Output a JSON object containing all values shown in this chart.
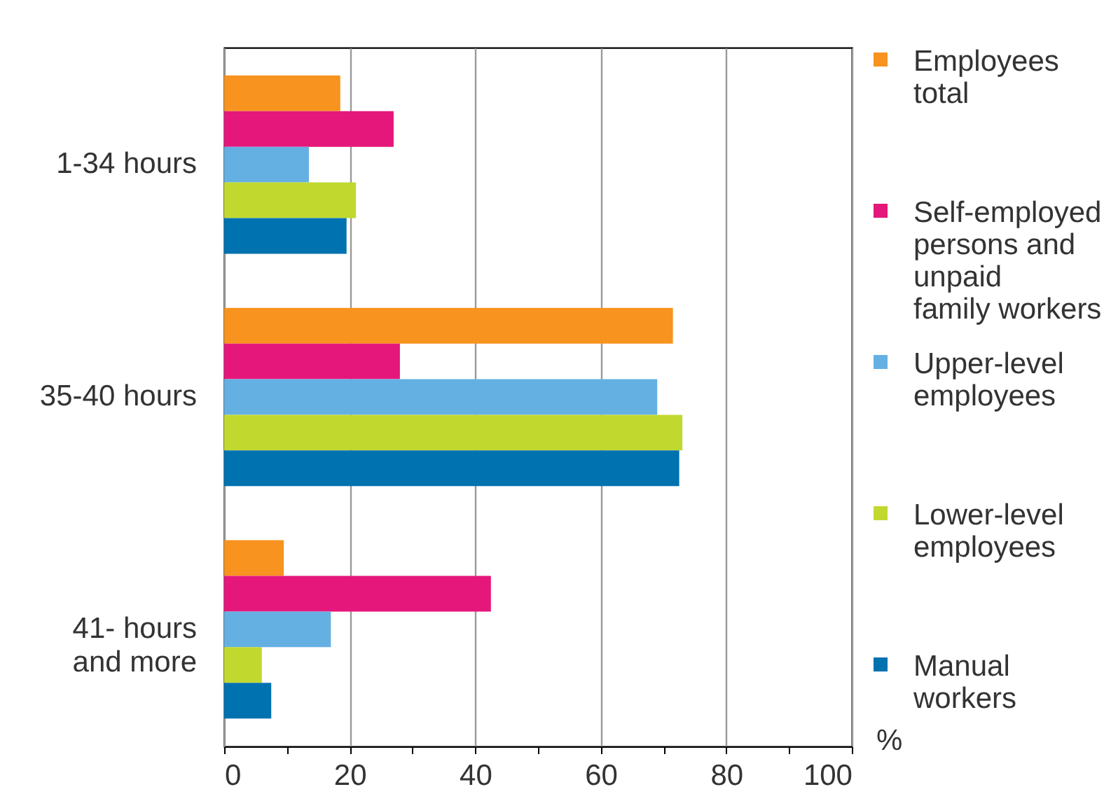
{
  "chart_data": {
    "type": "bar",
    "orientation": "horizontal",
    "categories": [
      "1-34 hours",
      "35-40 hours",
      "41- hours\nand more"
    ],
    "series": [
      {
        "name": "Employees\ntotal",
        "color": "#f7931e",
        "values": [
          18.5,
          71.5,
          9.5
        ]
      },
      {
        "name": "Self-employed\npersons and\nunpaid\nfamily workers",
        "color": "#e5177b",
        "values": [
          27,
          28,
          42.5
        ]
      },
      {
        "name": "Upper-level\nemployees",
        "color": "#64b0e3",
        "values": [
          13.5,
          69,
          17
        ]
      },
      {
        "name": "Lower-level\nemployees",
        "color": "#c1d82f",
        "values": [
          21,
          73,
          6
        ]
      },
      {
        "name": "Manual\nworkers",
        "color": "#0072b0",
        "values": [
          19.5,
          72.5,
          7.5
        ]
      }
    ],
    "xlabel": "%",
    "xlim": [
      0,
      100
    ],
    "xticks": [
      0,
      {
        "value": 10,
        "label": null
      },
      20,
      {
        "value": 30,
        "label": null
      },
      40,
      {
        "value": 50,
        "label": null
      },
      60,
      {
        "value": 70,
        "label": null
      },
      80,
      {
        "value": 90,
        "label": null
      },
      100
    ],
    "grid": "x",
    "legend": "right"
  }
}
